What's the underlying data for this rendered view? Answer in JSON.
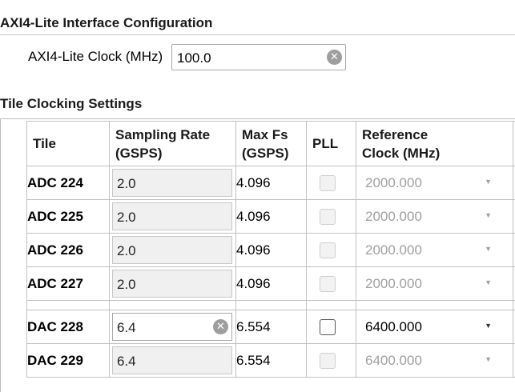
{
  "axi": {
    "title": "AXI4-Lite Interface Configuration",
    "clock_label": "AXI4-Lite Clock (MHz)",
    "clock_value": "100.0"
  },
  "tile_section": {
    "title": "Tile Clocking Settings",
    "headers": {
      "tile": "Tile",
      "sampling_line1": "Sampling Rate",
      "sampling_line2": "(GSPS)",
      "maxfs_line1": "Max Fs",
      "maxfs_line2": "(GSPS)",
      "pll": "PLL",
      "ref_line1": "Reference",
      "ref_line2": "Clock (MHz)"
    },
    "rows": [
      {
        "tile": "ADC 224",
        "sampling": "2.0",
        "maxfs": "4.096",
        "pll_checked": false,
        "pll_enabled": false,
        "refclk": "2000.000",
        "enabled": false
      },
      {
        "tile": "ADC 225",
        "sampling": "2.0",
        "maxfs": "4.096",
        "pll_checked": false,
        "pll_enabled": false,
        "refclk": "2000.000",
        "enabled": false
      },
      {
        "tile": "ADC 226",
        "sampling": "2.0",
        "maxfs": "4.096",
        "pll_checked": false,
        "pll_enabled": false,
        "refclk": "2000.000",
        "enabled": false
      },
      {
        "tile": "ADC 227",
        "sampling": "2.0",
        "maxfs": "4.096",
        "pll_checked": false,
        "pll_enabled": false,
        "refclk": "2000.000",
        "enabled": false
      },
      {
        "tile": "DAC 228",
        "sampling": "6.4",
        "maxfs": "6.554",
        "pll_checked": false,
        "pll_enabled": true,
        "refclk": "6400.000",
        "enabled": true
      },
      {
        "tile": "DAC 229",
        "sampling": "6.4",
        "maxfs": "6.554",
        "pll_checked": false,
        "pll_enabled": false,
        "refclk": "6400.000",
        "enabled": false
      }
    ]
  },
  "icons": {
    "clear": "clear-icon",
    "dropdown": "chevron-down-icon"
  }
}
